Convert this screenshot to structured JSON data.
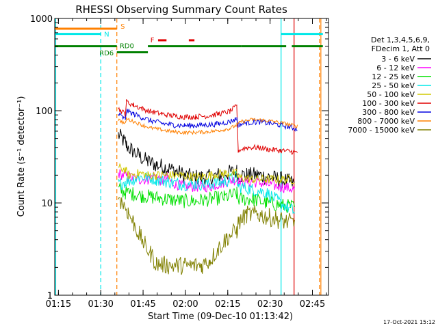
{
  "chart_data": {
    "type": "line",
    "title": "RHESSI Observing Summary Count Rates",
    "xlabel": "Start Time (09-Dec-10 01:13:42)",
    "ylabel": "Count Rate (s⁻¹ detector⁻¹)",
    "x_unit": "minutes after 01:13:42",
    "xlim": [
      0,
      97
    ],
    "ylim": [
      1,
      1000
    ],
    "y_scale": "log",
    "x_ticks": [
      {
        "x": 1.3,
        "label": "01:15"
      },
      {
        "x": 16.3,
        "label": "01:30"
      },
      {
        "x": 31.3,
        "label": "01:45"
      },
      {
        "x": 46.3,
        "label": "02:00"
      },
      {
        "x": 61.3,
        "label": "02:15"
      },
      {
        "x": 76.3,
        "label": "02:30"
      },
      {
        "x": 91.3,
        "label": "02:45"
      }
    ],
    "y_ticks": [
      {
        "y": 1,
        "label": "1"
      },
      {
        "y": 10,
        "label": "10"
      },
      {
        "y": 100,
        "label": "100"
      },
      {
        "y": 1000,
        "label": "1000"
      }
    ],
    "legend": {
      "title_lines": [
        "Det 1,3,4,5,6,9,",
        "FDecim 1, Att 0"
      ],
      "position": "right"
    },
    "series": [
      {
        "name": "3 - 6 keV",
        "color": "#000000",
        "noise": 0.09,
        "points": [
          [
            22.5,
            55
          ],
          [
            25,
            45
          ],
          [
            25.4,
            42
          ],
          [
            27,
            38
          ],
          [
            30,
            32
          ],
          [
            33,
            28
          ],
          [
            36,
            26
          ],
          [
            40,
            24
          ],
          [
            43,
            22
          ],
          [
            46,
            20
          ],
          [
            49,
            19
          ],
          [
            52,
            19
          ],
          [
            55,
            19
          ],
          [
            58,
            20
          ],
          [
            61,
            21
          ],
          [
            64.5,
            22
          ],
          [
            65,
            20
          ],
          [
            68,
            20
          ],
          [
            72,
            20
          ],
          [
            76,
            19
          ],
          [
            80,
            18
          ],
          [
            83,
            17
          ],
          [
            85,
            16
          ]
        ]
      },
      {
        "name": "6 - 12 keV",
        "color": "#ff00ff",
        "noise": 0.06,
        "points": [
          [
            22.5,
            21
          ],
          [
            26,
            19
          ],
          [
            30,
            18
          ],
          [
            33,
            18
          ],
          [
            35,
            20
          ],
          [
            36,
            19
          ],
          [
            38,
            17
          ],
          [
            40,
            19
          ],
          [
            41,
            17
          ],
          [
            43,
            16
          ],
          [
            46,
            15
          ],
          [
            50,
            15
          ],
          [
            55,
            15
          ],
          [
            58,
            16
          ],
          [
            61,
            17
          ],
          [
            64.5,
            18
          ],
          [
            65,
            17
          ],
          [
            70,
            17
          ],
          [
            75,
            16
          ],
          [
            80,
            15
          ],
          [
            85,
            14
          ]
        ]
      },
      {
        "name": "12 - 25 keV",
        "color": "#00e000",
        "noise": 0.08,
        "points": [
          [
            22.5,
            14
          ],
          [
            25,
            13
          ],
          [
            28,
            12.5
          ],
          [
            31,
            12
          ],
          [
            35,
            11.5
          ],
          [
            40,
            11
          ],
          [
            45,
            10.5
          ],
          [
            50,
            10.5
          ],
          [
            55,
            11
          ],
          [
            60,
            11.5
          ],
          [
            64.5,
            12.5
          ],
          [
            65,
            11
          ],
          [
            70,
            11
          ],
          [
            75,
            10
          ],
          [
            80,
            9.5
          ],
          [
            85,
            9
          ]
        ]
      },
      {
        "name": "25 - 50 keV",
        "color": "#00e8e8",
        "noise": 0.07,
        "points": [
          [
            22.5,
            16
          ],
          [
            25,
            17
          ],
          [
            28,
            18
          ],
          [
            30,
            19
          ],
          [
            33,
            19
          ],
          [
            36,
            18
          ],
          [
            40,
            17
          ],
          [
            45,
            16
          ],
          [
            50,
            16
          ],
          [
            55,
            16
          ],
          [
            60,
            17
          ],
          [
            64.5,
            19
          ],
          [
            65,
            15
          ],
          [
            70,
            14
          ],
          [
            75,
            13
          ],
          [
            80,
            10
          ],
          [
            85,
            8
          ]
        ]
      },
      {
        "name": "50 - 100 keV",
        "color": "#d0c800",
        "noise": 0.05,
        "points": [
          [
            22.5,
            24
          ],
          [
            25,
            23
          ],
          [
            25.4,
            22
          ],
          [
            26,
            20
          ],
          [
            30,
            21
          ],
          [
            33,
            20
          ],
          [
            36,
            20
          ],
          [
            40,
            20
          ],
          [
            45,
            20
          ],
          [
            50,
            19
          ],
          [
            55,
            20
          ],
          [
            60,
            21
          ],
          [
            64.5,
            21
          ],
          [
            65,
            19
          ],
          [
            70,
            18
          ],
          [
            75,
            18
          ],
          [
            80,
            18
          ],
          [
            85,
            18
          ]
        ]
      },
      {
        "name": "100 - 300 keV",
        "color": "#e00000",
        "noise": 0.03,
        "points": [
          [
            22.5,
            105
          ],
          [
            25,
            92
          ],
          [
            25.4,
            125
          ],
          [
            28,
            115
          ],
          [
            31,
            105
          ],
          [
            34,
            98
          ],
          [
            38,
            92
          ],
          [
            42,
            88
          ],
          [
            46,
            86
          ],
          [
            50,
            86
          ],
          [
            54,
            88
          ],
          [
            58,
            92
          ],
          [
            62,
            98
          ],
          [
            64.5,
            112
          ],
          [
            65,
            37
          ],
          [
            68,
            40
          ],
          [
            72,
            40
          ],
          [
            76,
            38
          ],
          [
            80,
            37
          ],
          [
            84,
            36
          ],
          [
            86,
            35
          ]
        ]
      },
      {
        "name": "300 - 800 keV",
        "color": "#0000e0",
        "noise": 0.03,
        "points": [
          [
            22.5,
            92
          ],
          [
            25,
            80
          ],
          [
            25.4,
            100
          ],
          [
            28,
            92
          ],
          [
            31,
            84
          ],
          [
            34,
            78
          ],
          [
            38,
            73
          ],
          [
            42,
            70
          ],
          [
            46,
            69
          ],
          [
            50,
            69
          ],
          [
            54,
            70
          ],
          [
            58,
            72
          ],
          [
            62,
            76
          ],
          [
            64.5,
            82
          ],
          [
            65,
            70
          ],
          [
            68,
            74
          ],
          [
            72,
            76
          ],
          [
            76,
            73
          ],
          [
            80,
            70
          ],
          [
            84,
            66
          ],
          [
            86,
            63
          ]
        ]
      },
      {
        "name": "800 - 7000 keV",
        "color": "#ff8000",
        "noise": 0.02,
        "points": [
          [
            22.5,
            80
          ],
          [
            25,
            72
          ],
          [
            25.4,
            82
          ],
          [
            28,
            76
          ],
          [
            31,
            70
          ],
          [
            34,
            65
          ],
          [
            38,
            62
          ],
          [
            42,
            59
          ],
          [
            46,
            58
          ],
          [
            50,
            58
          ],
          [
            54,
            59
          ],
          [
            58,
            61
          ],
          [
            62,
            64
          ],
          [
            64.5,
            70
          ],
          [
            66,
            76
          ],
          [
            70,
            80
          ],
          [
            74,
            79
          ],
          [
            78,
            76
          ],
          [
            82,
            72
          ],
          [
            86,
            68
          ]
        ]
      },
      {
        "name": "7000 - 15000 keV",
        "color": "#808000",
        "noise": 0.1,
        "points": [
          [
            22.5,
            12
          ],
          [
            24,
            10
          ],
          [
            26,
            8
          ],
          [
            28,
            6
          ],
          [
            30,
            4.5
          ],
          [
            32,
            3.5
          ],
          [
            34,
            2.8
          ],
          [
            36,
            2.2
          ],
          [
            40,
            2.1
          ],
          [
            46,
            2.1
          ],
          [
            52,
            2.1
          ],
          [
            55,
            2.4
          ],
          [
            58,
            3.2
          ],
          [
            61,
            4.2
          ],
          [
            64.5,
            5
          ],
          [
            65,
            6
          ],
          [
            68,
            7.5
          ],
          [
            72,
            7.5
          ],
          [
            76,
            7
          ],
          [
            80,
            6.5
          ],
          [
            85,
            6
          ]
        ]
      }
    ],
    "annotations": {
      "vertical_lines": [
        {
          "x": 0.35,
          "color": "#00e8e8",
          "style": "solid"
        },
        {
          "x": 16.3,
          "color": "#00e8e8",
          "style": "dashed"
        },
        {
          "x": 22.0,
          "color": "#ff8000",
          "style": "dashed"
        },
        {
          "x": 80.2,
          "color": "#00e8e8",
          "style": "solid"
        },
        {
          "x": 84.8,
          "color": "#e00000",
          "style": "solid"
        },
        {
          "x": 93.8,
          "color": "#ff8000",
          "style": "dashed"
        },
        {
          "x": 94.3,
          "color": "#ff8000",
          "style": "solid"
        }
      ],
      "flag_segments": [
        {
          "label": "S",
          "color": "#ff8000",
          "y": 775,
          "segments": [
            [
              0,
              22
            ]
          ]
        },
        {
          "label": "N",
          "color": "#00e8e8",
          "y": 680,
          "segments": [
            [
              0,
              16.3
            ],
            [
              80.2,
              95
            ]
          ]
        },
        {
          "label": "RD6",
          "color": "#008000",
          "y": 430,
          "segments": [
            [
              22,
              33
            ]
          ]
        },
        {
          "label": "RD0",
          "color": "#008000",
          "y": 500,
          "segments": [
            [
              0,
              22
            ],
            [
              33,
              66
            ],
            [
              66,
              82
            ],
            [
              84,
              95
            ]
          ]
        },
        {
          "label": "F",
          "color": "#e00000",
          "y": 580,
          "segments": [
            [
              36.6,
              39.6
            ],
            [
              47.5,
              49.5
            ]
          ]
        }
      ],
      "flag_labels": [
        {
          "text": "S",
          "x": 23.3,
          "y": 830,
          "color": "#ff8000"
        },
        {
          "text": "N",
          "x": 17.5,
          "y": 680,
          "color": "#00e8e8"
        },
        {
          "text": "RD0",
          "x": 23.0,
          "y": 510,
          "color": "#008000"
        },
        {
          "text": "RD6",
          "x": 15.8,
          "y": 425,
          "color": "#008000"
        },
        {
          "text": "F",
          "x": 33.9,
          "y": 590,
          "color": "#e00000"
        }
      ]
    }
  },
  "footer": {
    "date_stamp": "17-Oct-2021 15:12"
  }
}
